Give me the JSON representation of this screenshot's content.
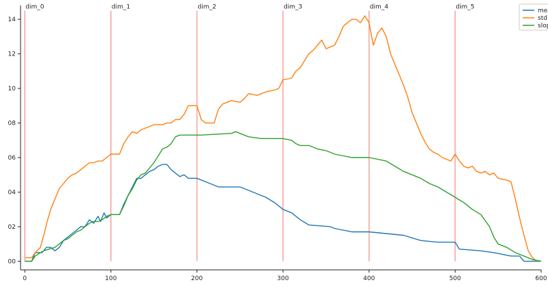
{
  "colors": {
    "mean": "#1f77b4",
    "std": "#ff7f0e",
    "slope": "#2ca02c",
    "dim_line": "#f4a6a0",
    "axis": "#222222",
    "legend_border": "#cccccc"
  },
  "chart_data": {
    "type": "line",
    "title": "",
    "xlabel": "",
    "ylabel": "",
    "xlim": [
      -5,
      600
    ],
    "ylim": [
      -0.05,
      1.48
    ],
    "grid": false,
    "legend_position": "top-right",
    "x_ticks": [
      0,
      100,
      200,
      300,
      400,
      500,
      600
    ],
    "x_tick_labels": [
      "0",
      "100",
      "200",
      "300",
      "400",
      "500",
      "600"
    ],
    "y_ticks": [
      0.0,
      0.2,
      0.4,
      0.6,
      0.8,
      1.0,
      1.2,
      1.4
    ],
    "y_tick_labels": [
      "00",
      "02",
      "04",
      "06",
      "08",
      "10",
      "12",
      "14"
    ],
    "vlines": [
      {
        "x": 0,
        "label": "dim_0"
      },
      {
        "x": 100,
        "label": "dim_1"
      },
      {
        "x": 200,
        "label": "dim_2"
      },
      {
        "x": 300,
        "label": "dim_3"
      },
      {
        "x": 400,
        "label": "dim_4"
      },
      {
        "x": 500,
        "label": "dim_5"
      }
    ],
    "series": [
      {
        "name": "mea",
        "color_key": "mean",
        "points": [
          [
            0,
            0.0
          ],
          [
            8,
            0.0
          ],
          [
            12,
            0.05
          ],
          [
            20,
            0.05
          ],
          [
            25,
            0.08
          ],
          [
            30,
            0.08
          ],
          [
            35,
            0.06
          ],
          [
            40,
            0.08
          ],
          [
            45,
            0.12
          ],
          [
            50,
            0.14
          ],
          [
            55,
            0.16
          ],
          [
            60,
            0.18
          ],
          [
            65,
            0.2
          ],
          [
            70,
            0.2
          ],
          [
            75,
            0.24
          ],
          [
            80,
            0.22
          ],
          [
            85,
            0.26
          ],
          [
            88,
            0.23
          ],
          [
            92,
            0.28
          ],
          [
            95,
            0.25
          ],
          [
            100,
            0.27
          ],
          [
            110,
            0.27
          ],
          [
            115,
            0.33
          ],
          [
            120,
            0.38
          ],
          [
            125,
            0.43
          ],
          [
            130,
            0.48
          ],
          [
            135,
            0.48
          ],
          [
            140,
            0.5
          ],
          [
            145,
            0.52
          ],
          [
            150,
            0.53
          ],
          [
            155,
            0.55
          ],
          [
            160,
            0.56
          ],
          [
            165,
            0.56
          ],
          [
            170,
            0.53
          ],
          [
            175,
            0.51
          ],
          [
            180,
            0.49
          ],
          [
            185,
            0.5
          ],
          [
            190,
            0.48
          ],
          [
            200,
            0.48
          ],
          [
            205,
            0.47
          ],
          [
            215,
            0.45
          ],
          [
            225,
            0.43
          ],
          [
            250,
            0.43
          ],
          [
            260,
            0.41
          ],
          [
            270,
            0.39
          ],
          [
            280,
            0.37
          ],
          [
            290,
            0.34
          ],
          [
            300,
            0.3
          ],
          [
            310,
            0.28
          ],
          [
            320,
            0.24
          ],
          [
            330,
            0.21
          ],
          [
            355,
            0.2
          ],
          [
            360,
            0.19
          ],
          [
            380,
            0.17
          ],
          [
            400,
            0.17
          ],
          [
            420,
            0.16
          ],
          [
            440,
            0.15
          ],
          [
            460,
            0.12
          ],
          [
            480,
            0.11
          ],
          [
            500,
            0.11
          ],
          [
            505,
            0.07
          ],
          [
            530,
            0.06
          ],
          [
            545,
            0.05
          ],
          [
            555,
            0.04
          ],
          [
            565,
            0.03
          ],
          [
            575,
            0.03
          ],
          [
            580,
            0.0
          ],
          [
            600,
            0.0
          ]
        ]
      },
      {
        "name": "std",
        "color_key": "std",
        "points": [
          [
            0,
            0.02
          ],
          [
            8,
            0.02
          ],
          [
            12,
            0.05
          ],
          [
            18,
            0.08
          ],
          [
            22,
            0.15
          ],
          [
            26,
            0.23
          ],
          [
            30,
            0.3
          ],
          [
            35,
            0.36
          ],
          [
            40,
            0.42
          ],
          [
            45,
            0.45
          ],
          [
            50,
            0.48
          ],
          [
            55,
            0.5
          ],
          [
            60,
            0.51
          ],
          [
            65,
            0.53
          ],
          [
            70,
            0.55
          ],
          [
            75,
            0.57
          ],
          [
            80,
            0.57
          ],
          [
            85,
            0.58
          ],
          [
            90,
            0.58
          ],
          [
            95,
            0.6
          ],
          [
            100,
            0.62
          ],
          [
            110,
            0.62
          ],
          [
            115,
            0.68
          ],
          [
            120,
            0.72
          ],
          [
            125,
            0.75
          ],
          [
            130,
            0.74
          ],
          [
            135,
            0.76
          ],
          [
            140,
            0.77
          ],
          [
            145,
            0.78
          ],
          [
            150,
            0.79
          ],
          [
            160,
            0.79
          ],
          [
            165,
            0.8
          ],
          [
            170,
            0.8
          ],
          [
            175,
            0.82
          ],
          [
            180,
            0.82
          ],
          [
            185,
            0.85
          ],
          [
            190,
            0.9
          ],
          [
            200,
            0.9
          ],
          [
            205,
            0.82
          ],
          [
            210,
            0.8
          ],
          [
            220,
            0.8
          ],
          [
            225,
            0.88
          ],
          [
            230,
            0.91
          ],
          [
            235,
            0.92
          ],
          [
            240,
            0.93
          ],
          [
            250,
            0.92
          ],
          [
            255,
            0.94
          ],
          [
            260,
            0.97
          ],
          [
            270,
            0.96
          ],
          [
            280,
            0.98
          ],
          [
            290,
            0.99
          ],
          [
            295,
            1.0
          ],
          [
            300,
            1.05
          ],
          [
            310,
            1.06
          ],
          [
            315,
            1.1
          ],
          [
            320,
            1.12
          ],
          [
            325,
            1.16
          ],
          [
            330,
            1.2
          ],
          [
            335,
            1.22
          ],
          [
            340,
            1.25
          ],
          [
            345,
            1.28
          ],
          [
            350,
            1.23
          ],
          [
            360,
            1.25
          ],
          [
            365,
            1.3
          ],
          [
            370,
            1.36
          ],
          [
            375,
            1.38
          ],
          [
            380,
            1.4
          ],
          [
            385,
            1.4
          ],
          [
            390,
            1.38
          ],
          [
            395,
            1.42
          ],
          [
            400,
            1.38
          ],
          [
            405,
            1.25
          ],
          [
            410,
            1.32
          ],
          [
            415,
            1.35
          ],
          [
            420,
            1.3
          ],
          [
            425,
            1.2
          ],
          [
            430,
            1.14
          ],
          [
            435,
            1.08
          ],
          [
            440,
            1.02
          ],
          [
            445,
            0.95
          ],
          [
            450,
            0.86
          ],
          [
            455,
            0.8
          ],
          [
            460,
            0.74
          ],
          [
            465,
            0.69
          ],
          [
            470,
            0.65
          ],
          [
            475,
            0.63
          ],
          [
            480,
            0.62
          ],
          [
            485,
            0.6
          ],
          [
            490,
            0.59
          ],
          [
            495,
            0.58
          ],
          [
            500,
            0.62
          ],
          [
            505,
            0.58
          ],
          [
            510,
            0.55
          ],
          [
            515,
            0.54
          ],
          [
            520,
            0.55
          ],
          [
            525,
            0.52
          ],
          [
            530,
            0.51
          ],
          [
            535,
            0.52
          ],
          [
            540,
            0.5
          ],
          [
            545,
            0.51
          ],
          [
            550,
            0.48
          ],
          [
            560,
            0.47
          ],
          [
            565,
            0.46
          ],
          [
            570,
            0.36
          ],
          [
            575,
            0.25
          ],
          [
            580,
            0.15
          ],
          [
            585,
            0.06
          ],
          [
            590,
            0.02
          ],
          [
            595,
            0.0
          ]
        ]
      },
      {
        "name": "slop",
        "color_key": "slope",
        "points": [
          [
            0,
            0.0
          ],
          [
            8,
            0.0
          ],
          [
            12,
            0.03
          ],
          [
            18,
            0.05
          ],
          [
            22,
            0.06
          ],
          [
            28,
            0.07
          ],
          [
            35,
            0.08
          ],
          [
            40,
            0.1
          ],
          [
            45,
            0.12
          ],
          [
            50,
            0.13
          ],
          [
            55,
            0.15
          ],
          [
            60,
            0.17
          ],
          [
            65,
            0.18
          ],
          [
            70,
            0.2
          ],
          [
            75,
            0.22
          ],
          [
            80,
            0.23
          ],
          [
            85,
            0.23
          ],
          [
            90,
            0.24
          ],
          [
            95,
            0.26
          ],
          [
            100,
            0.27
          ],
          [
            110,
            0.27
          ],
          [
            115,
            0.32
          ],
          [
            120,
            0.38
          ],
          [
            125,
            0.42
          ],
          [
            130,
            0.47
          ],
          [
            135,
            0.5
          ],
          [
            140,
            0.51
          ],
          [
            145,
            0.54
          ],
          [
            150,
            0.57
          ],
          [
            160,
            0.65
          ],
          [
            165,
            0.66
          ],
          [
            170,
            0.68
          ],
          [
            175,
            0.72
          ],
          [
            180,
            0.73
          ],
          [
            200,
            0.73
          ],
          [
            205,
            0.73
          ],
          [
            240,
            0.74
          ],
          [
            245,
            0.75
          ],
          [
            250,
            0.74
          ],
          [
            255,
            0.73
          ],
          [
            260,
            0.72
          ],
          [
            275,
            0.71
          ],
          [
            300,
            0.71
          ],
          [
            310,
            0.7
          ],
          [
            315,
            0.68
          ],
          [
            320,
            0.67
          ],
          [
            330,
            0.67
          ],
          [
            340,
            0.65
          ],
          [
            350,
            0.64
          ],
          [
            360,
            0.62
          ],
          [
            380,
            0.6
          ],
          [
            400,
            0.6
          ],
          [
            420,
            0.58
          ],
          [
            430,
            0.55
          ],
          [
            440,
            0.52
          ],
          [
            450,
            0.5
          ],
          [
            460,
            0.48
          ],
          [
            470,
            0.45
          ],
          [
            480,
            0.43
          ],
          [
            490,
            0.4
          ],
          [
            500,
            0.37
          ],
          [
            510,
            0.34
          ],
          [
            520,
            0.3
          ],
          [
            530,
            0.27
          ],
          [
            540,
            0.2
          ],
          [
            545,
            0.14
          ],
          [
            550,
            0.1
          ],
          [
            560,
            0.08
          ],
          [
            570,
            0.05
          ],
          [
            580,
            0.03
          ],
          [
            590,
            0.01
          ],
          [
            600,
            0.0
          ]
        ]
      }
    ]
  }
}
